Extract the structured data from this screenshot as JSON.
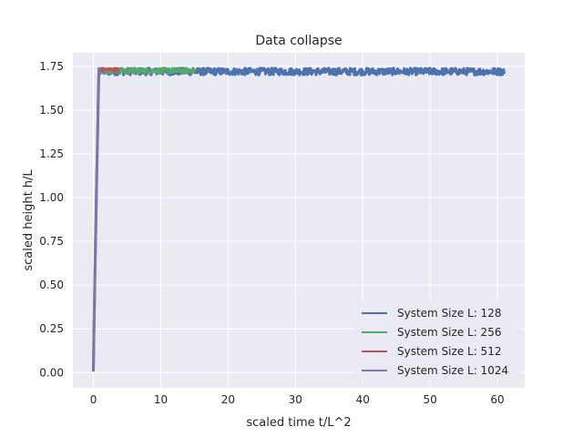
{
  "chart_data": {
    "type": "line",
    "title": "Data collapse",
    "xlabel": "scaled time t/L^2",
    "ylabel": "scaled height h/L",
    "xlim": [
      -3.05,
      64.05
    ],
    "ylim": [
      -0.087,
      1.827
    ],
    "x_ticks": [
      0,
      10,
      20,
      30,
      40,
      50,
      60
    ],
    "y_ticks": [
      0.0,
      0.25,
      0.5,
      0.75,
      1.0,
      1.25,
      1.5,
      1.75
    ],
    "y_tick_labels": [
      "0.00",
      "0.25",
      "0.50",
      "0.75",
      "1.00",
      "1.25",
      "1.50",
      "1.75"
    ],
    "grid": true,
    "background": "#eaeaf2",
    "legend_position": "lower-right",
    "series": [
      {
        "name": "System Size L: 128",
        "color": "#4c72b0",
        "plateau": 1.72,
        "x_end": 61.0,
        "noise": 0.02
      },
      {
        "name": "System Size L: 256",
        "color": "#55a868",
        "plateau": 1.725,
        "x_end": 15.3,
        "noise": 0.015
      },
      {
        "name": "System Size L: 512",
        "color": "#c44e52",
        "plateau": 1.73,
        "x_end": 3.8,
        "noise": 0.01
      },
      {
        "name": "System Size L: 1024",
        "color": "#8172b2",
        "plateau": 1.73,
        "x_end": 1.0,
        "noise": 0.01
      }
    ]
  }
}
